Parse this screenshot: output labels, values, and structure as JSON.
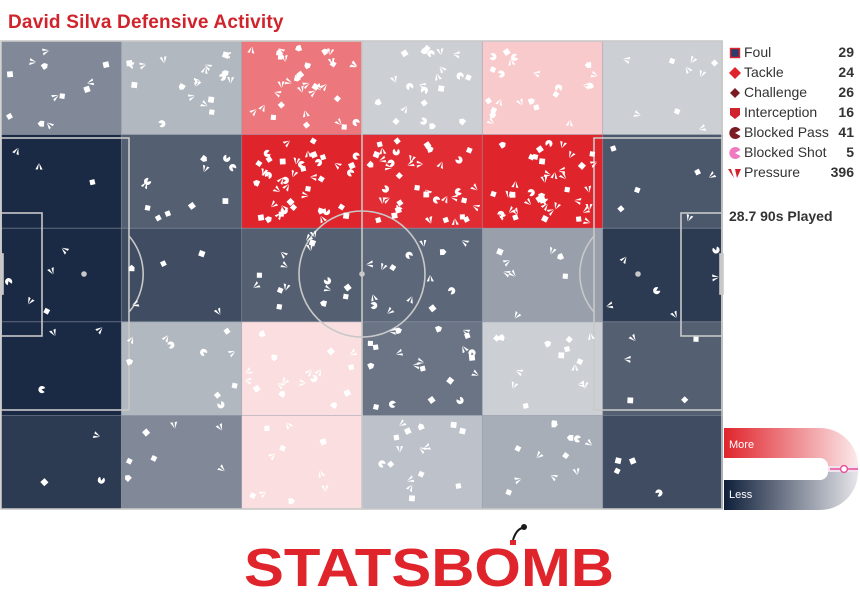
{
  "title": "David Silva Defensive Activity",
  "played": "28.7 90s Played",
  "colors": {
    "title": "#d0232b",
    "high": "#e0242c",
    "low": "#0f1f3a",
    "line": "#c8c8c8",
    "mark": "#ffffff",
    "brand_red": "#e0242c",
    "scale_pink": "#e84d9a"
  },
  "legend": [
    {
      "id": "foul",
      "label": "Foul",
      "count": "29",
      "icon": "square-icon"
    },
    {
      "id": "tackle",
      "label": "Tackle",
      "count": "24",
      "icon": "diamond-icon"
    },
    {
      "id": "challenge",
      "label": "Challenge",
      "count": "26",
      "icon": "diamond-dark-icon"
    },
    {
      "id": "interception",
      "label": "Interception",
      "count": "16",
      "icon": "pentagon-icon"
    },
    {
      "id": "blocked_pass",
      "label": "Blocked Pass",
      "count": "41",
      "icon": "pacman-icon"
    },
    {
      "id": "blocked_shot",
      "label": "Blocked Shot",
      "count": "5",
      "icon": "pacman-pink-icon"
    },
    {
      "id": "pressure",
      "label": "Pressure",
      "count": "396",
      "icon": "arrowhead-icon"
    }
  ],
  "scale": {
    "more": "More",
    "less": "Less"
  },
  "brand": {
    "text": "STATSBOMB"
  },
  "chart_data": {
    "type": "heatmap",
    "title": "David Silva Defensive Activity",
    "grid_cols": 6,
    "grid_rows": 5,
    "value_scale": "relative intensity 0 (Less) to 1 (More)",
    "intensity": [
      [
        0.3,
        0.4,
        0.8,
        0.45,
        0.6,
        0.45
      ],
      [
        0.05,
        0.2,
        1.0,
        0.98,
        1.0,
        0.18
      ],
      [
        0.05,
        0.15,
        0.2,
        0.22,
        0.35,
        0.1
      ],
      [
        0.05,
        0.4,
        0.55,
        0.25,
        0.45,
        0.2
      ],
      [
        0.1,
        0.3,
        0.55,
        0.42,
        0.38,
        0.15
      ]
    ],
    "zone_counts": [
      [
        12,
        21,
        34,
        22,
        22,
        9
      ],
      [
        3,
        11,
        44,
        42,
        42,
        6
      ],
      [
        5,
        5,
        16,
        14,
        8,
        6
      ],
      [
        3,
        10,
        17,
        21,
        14,
        5
      ],
      [
        3,
        7,
        10,
        16,
        12,
        4
      ]
    ],
    "legend": [
      {
        "name": "Foul",
        "count": 29
      },
      {
        "name": "Tackle",
        "count": 24
      },
      {
        "name": "Challenge",
        "count": 26
      },
      {
        "name": "Interception",
        "count": 16
      },
      {
        "name": "Blocked Pass",
        "count": 41
      },
      {
        "name": "Blocked Shot",
        "count": 5
      },
      {
        "name": "Pressure",
        "count": 396
      }
    ]
  }
}
